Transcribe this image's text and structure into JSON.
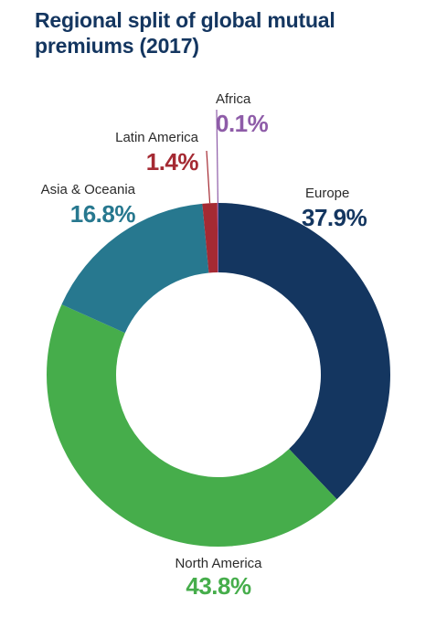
{
  "chart_data": {
    "type": "pie",
    "title": "Regional split of global mutual premiums (2017)",
    "categories": [
      "Europe",
      "North America",
      "Asia & Oceania",
      "Latin America",
      "Africa"
    ],
    "values": [
      37.9,
      43.8,
      16.8,
      1.4,
      0.1
    ],
    "value_labels": [
      "37.9%",
      "43.8%",
      "16.8%",
      "1.4%",
      "0.1%"
    ],
    "unit": "%",
    "donut": true,
    "colors": {
      "Europe": "#143660",
      "North America": "#46ad4b",
      "Asia & Oceania": "#27788f",
      "Latin America": "#a52a33",
      "Africa": "#8e5ca8"
    },
    "legend": "none",
    "labels_placement": "outside"
  }
}
